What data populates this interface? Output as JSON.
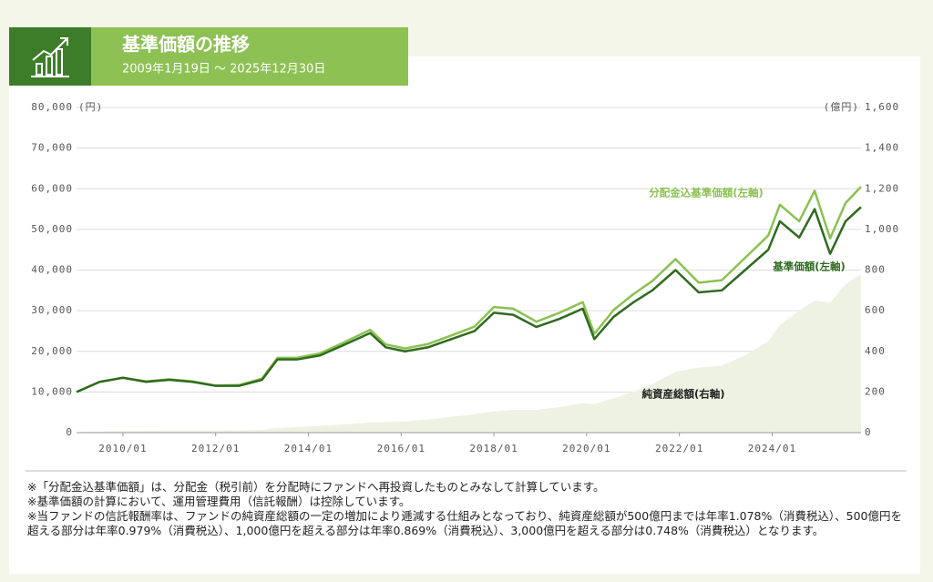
{
  "chart_data": {
    "type": "line",
    "title": "基準価額の推移",
    "subtitle": "2009年1月19日 〜 2025年12月30日",
    "y_unit": "(円)",
    "y2_unit": "(億円)",
    "x": [
      "2009/01",
      "2009/07",
      "2010/01",
      "2010/07",
      "2011/01",
      "2011/07",
      "2012/01",
      "2012/07",
      "2013/01",
      "2013/05",
      "2013/10",
      "2014/04",
      "2014/10",
      "2015/05",
      "2015/09",
      "2016/02",
      "2016/08",
      "2017/02",
      "2017/08",
      "2018/01",
      "2018/06",
      "2018/12",
      "2019/06",
      "2019/12",
      "2020/03",
      "2020/08",
      "2021/01",
      "2021/06",
      "2021/12",
      "2022/06",
      "2022/12",
      "2023/06",
      "2023/12",
      "2024/03",
      "2024/08",
      "2024/12",
      "2025/04",
      "2025/08",
      "2025/12"
    ],
    "xticks": [
      "2010/01",
      "2012/01",
      "2014/01",
      "2016/01",
      "2018/01",
      "2020/01",
      "2022/01",
      "2024/01"
    ],
    "series": [
      {
        "name": "純資産総額(右軸)",
        "type": "area",
        "axis": "y2",
        "color": "#eef2e2",
        "values": [
          3,
          5,
          8,
          9,
          10,
          10,
          10,
          11,
          14,
          22,
          27,
          33,
          40,
          50,
          52,
          55,
          65,
          78,
          90,
          105,
          112,
          112,
          125,
          145,
          140,
          170,
          200,
          240,
          300,
          320,
          330,
          380,
          450,
          530,
          600,
          650,
          640,
          730,
          780
        ]
      },
      {
        "name": "分配金込基準価額(左軸)",
        "type": "line",
        "axis": "y",
        "color": "#8cc152",
        "values": [
          10000,
          12500,
          13500,
          12600,
          13100,
          12600,
          11600,
          11700,
          13300,
          18400,
          18400,
          19500,
          22100,
          25300,
          21700,
          20700,
          21800,
          23900,
          26100,
          30900,
          30500,
          27300,
          29500,
          32100,
          24300,
          30200,
          34000,
          37300,
          42700,
          36900,
          37500,
          43000,
          48500,
          56100,
          52000,
          59500,
          47800,
          56500,
          60500
        ]
      },
      {
        "name": "基準価額(左軸)",
        "type": "line",
        "axis": "y",
        "color": "#2e6b1f",
        "values": [
          10000,
          12500,
          13500,
          12500,
          13000,
          12500,
          11500,
          11500,
          13000,
          18000,
          18000,
          19000,
          21500,
          24500,
          21000,
          20000,
          21000,
          23000,
          25000,
          29500,
          29000,
          26000,
          28000,
          30500,
          23000,
          28500,
          32000,
          35000,
          40000,
          34500,
          35000,
          40000,
          45000,
          52000,
          48000,
          55000,
          44000,
          52000,
          55500
        ]
      }
    ],
    "ylim": [
      0,
      80000
    ],
    "yticks": [
      0,
      {
        "value": 10000,
        "label": "10,000"
      },
      {
        "value": 20000,
        "label": "20,000"
      },
      {
        "value": 30000,
        "label": "30,000"
      },
      {
        "value": 40000,
        "label": "40,000"
      },
      {
        "value": 50000,
        "label": "50,000"
      },
      {
        "value": 60000,
        "label": "60,000"
      },
      {
        "value": 70000,
        "label": "70,000"
      },
      {
        "value": 80000,
        "label": "80,000"
      }
    ],
    "y2lim": [
      0,
      1600
    ],
    "y2ticks": [
      0,
      200,
      400,
      600,
      800,
      {
        "value": 1000,
        "label": "1,000"
      },
      {
        "value": 1200,
        "label": "1,200"
      },
      {
        "value": 1400,
        "label": "1,400"
      },
      {
        "value": 1600,
        "label": "1,600"
      }
    ],
    "grid": true,
    "notes": [
      "※「分配金込基準価額」は、分配金（税引前）を分配時にファンドへ再投資したものとみなして計算しています。",
      "※基準価額の計算において、運用管理費用（信託報酬）は控除しています。",
      "※当ファンドの信託報酬率は、ファンドの純資産総額の一定の増加により逓減する仕組みとなっており、純資産総額が500億円までは年率1.078%（消費税込）、500億円を超える部分は年率0.979%（消費税込）、1,000億円を超える部分は年率0.869%（消費税込）、3,000億円を超える部分は0.748%（消費税込）となります。"
    ]
  }
}
